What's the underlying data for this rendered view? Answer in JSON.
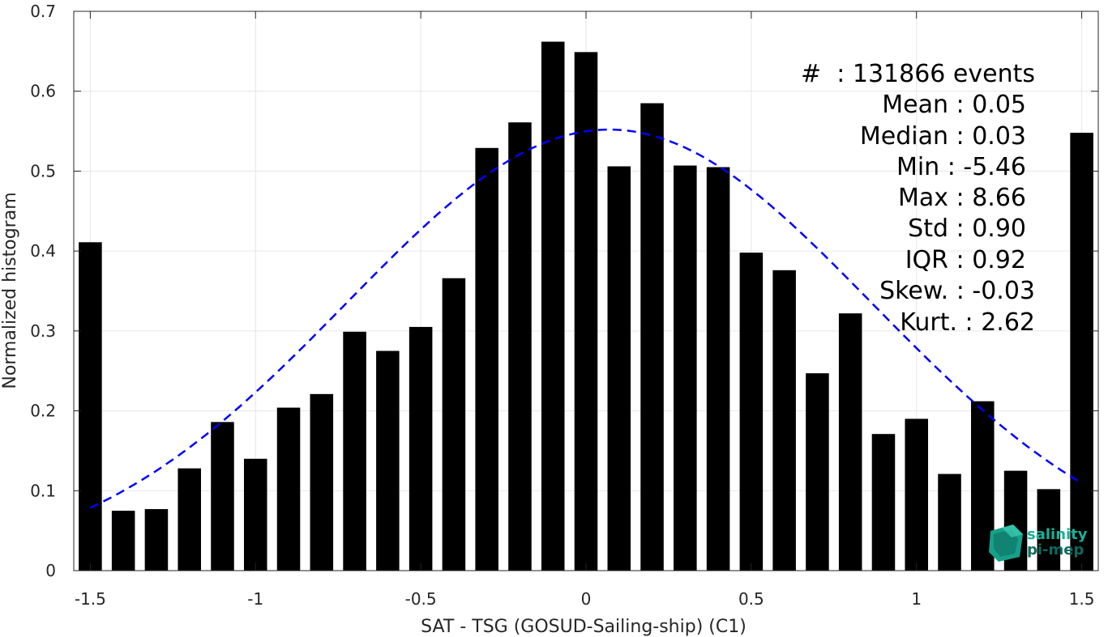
{
  "chart_data": {
    "type": "bar",
    "xlabel": "SAT - TSG (GOSUD-Sailing-ship) (C1)",
    "ylabel": "Normalized histogram",
    "xlim": [
      -1.55,
      1.55
    ],
    "ylim": [
      0,
      0.7
    ],
    "xticks": [
      -1.5,
      -1,
      -0.5,
      0,
      0.5,
      1,
      1.5
    ],
    "xtick_labels": [
      "-1.5",
      "-1",
      "-0.5",
      "0",
      "0.5",
      "1",
      "1.5"
    ],
    "yticks": [
      0,
      0.1,
      0.2,
      0.3,
      0.4,
      0.5,
      0.6,
      0.7
    ],
    "ytick_labels": [
      "0",
      "0.1",
      "0.2",
      "0.3",
      "0.4",
      "0.5",
      "0.6",
      "0.7"
    ],
    "grid": true,
    "bar_width": 0.07,
    "bar_color": "#000000",
    "x": [
      -1.5,
      -1.4,
      -1.3,
      -1.2,
      -1.1,
      -1.0,
      -0.9,
      -0.8,
      -0.7,
      -0.6,
      -0.5,
      -0.4,
      -0.3,
      -0.2,
      -0.1,
      0.0,
      0.1,
      0.2,
      0.3,
      0.4,
      0.5,
      0.6,
      0.7,
      0.8,
      0.9,
      1.0,
      1.1,
      1.2,
      1.3,
      1.4,
      1.5
    ],
    "values": [
      0.411,
      0.075,
      0.077,
      0.128,
      0.186,
      0.14,
      0.204,
      0.221,
      0.299,
      0.275,
      0.305,
      0.366,
      0.529,
      0.561,
      0.662,
      0.649,
      0.506,
      0.585,
      0.507,
      0.505,
      0.398,
      0.376,
      0.247,
      0.322,
      0.171,
      0.19,
      0.121,
      0.212,
      0.125,
      0.102,
      0.548
    ],
    "fit_curve": {
      "style": "dashed",
      "color": "#0000ff",
      "mean": 0.07,
      "std": 0.795,
      "peak": 0.552,
      "x_range": [
        -1.5,
        1.5
      ]
    },
    "annotations": [
      "#  : 131866 events",
      "Mean : 0.05",
      "Median : 0.03",
      "Min : -5.46",
      "Max : 8.66",
      "Std : 0.90",
      "IQR : 0.92",
      "Skew. : -0.03",
      "Kurt. : 2.62"
    ]
  },
  "logo": {
    "line1": "salinity",
    "line2": "pi-mep",
    "color": "#18b29a",
    "dark_color": "#0d6b5e"
  }
}
